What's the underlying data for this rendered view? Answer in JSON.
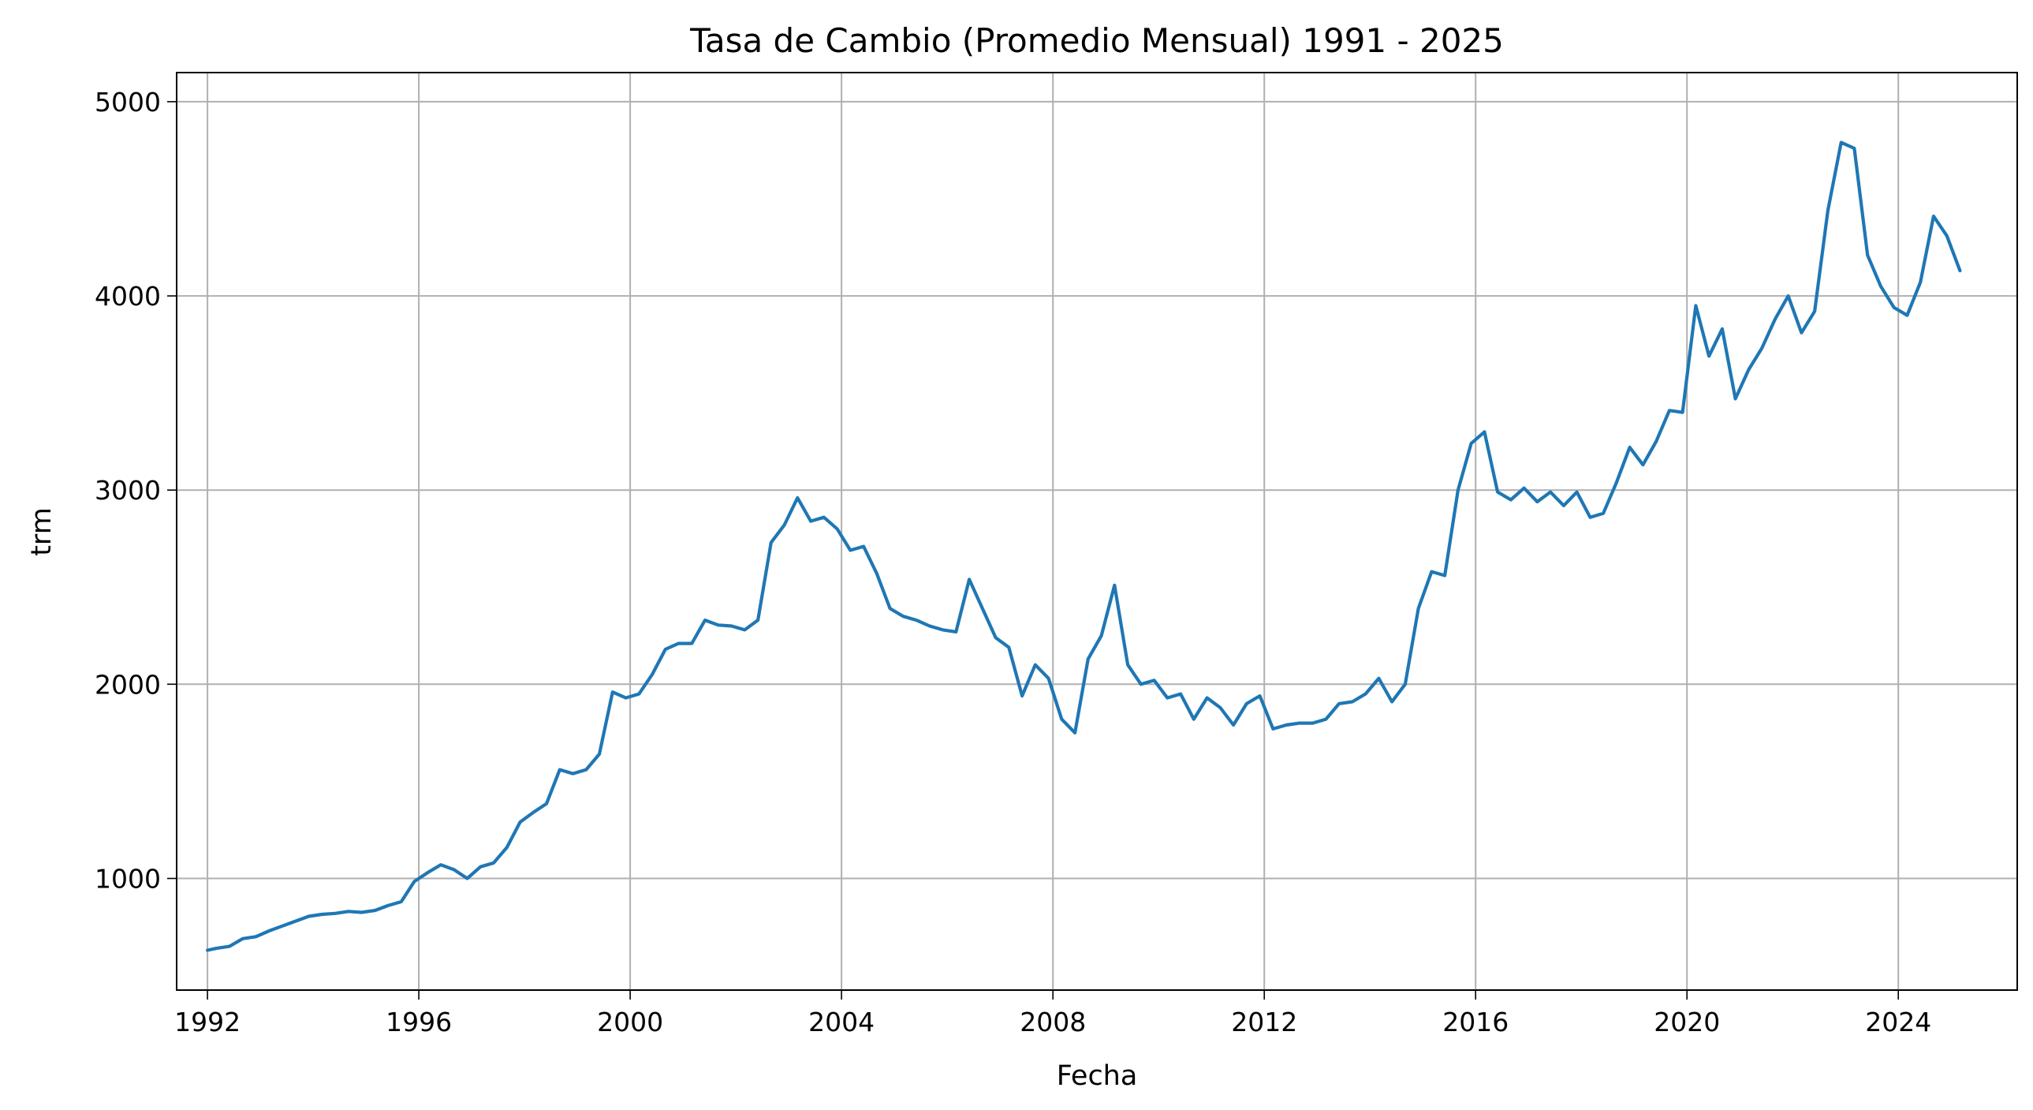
{
  "chart_data": {
    "type": "line",
    "title": "Tasa de Cambio (Promedio Mensual) 1991 - 2025",
    "xlabel": "Fecha",
    "ylabel": "trm",
    "x_type": "date",
    "xlim": [
      "1991-06-01",
      "2026-04-01"
    ],
    "ylim": [
      425,
      5150
    ],
    "xticks": [
      {
        "value": "1992-01-01",
        "label": "1992"
      },
      {
        "value": "1996-01-01",
        "label": "1996"
      },
      {
        "value": "2000-01-01",
        "label": "2000"
      },
      {
        "value": "2004-01-01",
        "label": "2004"
      },
      {
        "value": "2008-01-01",
        "label": "2008"
      },
      {
        "value": "2012-01-01",
        "label": "2012"
      },
      {
        "value": "2016-01-01",
        "label": "2016"
      },
      {
        "value": "2020-01-01",
        "label": "2020"
      },
      {
        "value": "2024-01-01",
        "label": "2024"
      }
    ],
    "yticks": [
      {
        "value": 1000,
        "label": "1000"
      },
      {
        "value": 2000,
        "label": "2000"
      },
      {
        "value": 3000,
        "label": "3000"
      },
      {
        "value": 4000,
        "label": "4000"
      },
      {
        "value": 5000,
        "label": "5000"
      }
    ],
    "grid": true,
    "series": [
      {
        "color": "#1f77b4",
        "points": [
          [
            "1992-01",
            630
          ],
          [
            "1992-03",
            640
          ],
          [
            "1992-06",
            650
          ],
          [
            "1992-09",
            690
          ],
          [
            "1992-12",
            700
          ],
          [
            "1993-03",
            730
          ],
          [
            "1993-06",
            755
          ],
          [
            "1993-09",
            780
          ],
          [
            "1993-12",
            805
          ],
          [
            "1994-03",
            815
          ],
          [
            "1994-06",
            820
          ],
          [
            "1994-09",
            830
          ],
          [
            "1994-12",
            825
          ],
          [
            "1995-03",
            835
          ],
          [
            "1995-06",
            860
          ],
          [
            "1995-09",
            880
          ],
          [
            "1995-12",
            985
          ],
          [
            "1996-03",
            1030
          ],
          [
            "1996-06",
            1070
          ],
          [
            "1996-09",
            1045
          ],
          [
            "1996-12",
            1000
          ],
          [
            "1997-03",
            1060
          ],
          [
            "1997-06",
            1080
          ],
          [
            "1997-09",
            1160
          ],
          [
            "1997-12",
            1290
          ],
          [
            "1998-03",
            1340
          ],
          [
            "1998-06",
            1385
          ],
          [
            "1998-09",
            1560
          ],
          [
            "1998-12",
            1540
          ],
          [
            "1999-03",
            1560
          ],
          [
            "1999-06",
            1640
          ],
          [
            "1999-09",
            1960
          ],
          [
            "1999-12",
            1930
          ],
          [
            "2000-03",
            1950
          ],
          [
            "2000-06",
            2050
          ],
          [
            "2000-09",
            2180
          ],
          [
            "2000-12",
            2210
          ],
          [
            "2001-03",
            2210
          ],
          [
            "2001-06",
            2330
          ],
          [
            "2001-09",
            2305
          ],
          [
            "2001-12",
            2300
          ],
          [
            "2002-03",
            2280
          ],
          [
            "2002-06",
            2330
          ],
          [
            "2002-09",
            2730
          ],
          [
            "2002-12",
            2820
          ],
          [
            "2003-03",
            2960
          ],
          [
            "2003-06",
            2840
          ],
          [
            "2003-09",
            2860
          ],
          [
            "2003-12",
            2800
          ],
          [
            "2004-03",
            2690
          ],
          [
            "2004-06",
            2710
          ],
          [
            "2004-09",
            2570
          ],
          [
            "2004-12",
            2390
          ],
          [
            "2005-03",
            2350
          ],
          [
            "2005-06",
            2330
          ],
          [
            "2005-09",
            2300
          ],
          [
            "2005-12",
            2280
          ],
          [
            "2006-03",
            2270
          ],
          [
            "2006-06",
            2540
          ],
          [
            "2006-09",
            2390
          ],
          [
            "2006-12",
            2240
          ],
          [
            "2007-03",
            2190
          ],
          [
            "2007-06",
            1940
          ],
          [
            "2007-09",
            2100
          ],
          [
            "2007-12",
            2030
          ],
          [
            "2008-03",
            1820
          ],
          [
            "2008-06",
            1750
          ],
          [
            "2008-09",
            2130
          ],
          [
            "2008-12",
            2250
          ],
          [
            "2009-03",
            2510
          ],
          [
            "2009-06",
            2100
          ],
          [
            "2009-09",
            2000
          ],
          [
            "2009-12",
            2020
          ],
          [
            "2010-03",
            1930
          ],
          [
            "2010-06",
            1950
          ],
          [
            "2010-09",
            1820
          ],
          [
            "2010-12",
            1930
          ],
          [
            "2011-03",
            1880
          ],
          [
            "2011-06",
            1790
          ],
          [
            "2011-09",
            1900
          ],
          [
            "2011-12",
            1940
          ],
          [
            "2012-03",
            1770
          ],
          [
            "2012-06",
            1790
          ],
          [
            "2012-09",
            1800
          ],
          [
            "2012-12",
            1800
          ],
          [
            "2013-03",
            1820
          ],
          [
            "2013-06",
            1900
          ],
          [
            "2013-09",
            1910
          ],
          [
            "2013-12",
            1950
          ],
          [
            "2014-03",
            2030
          ],
          [
            "2014-06",
            1910
          ],
          [
            "2014-09",
            2000
          ],
          [
            "2014-12",
            2390
          ],
          [
            "2015-03",
            2580
          ],
          [
            "2015-06",
            2560
          ],
          [
            "2015-09",
            3000
          ],
          [
            "2015-12",
            3240
          ],
          [
            "2016-03",
            3300
          ],
          [
            "2016-06",
            2990
          ],
          [
            "2016-09",
            2950
          ],
          [
            "2016-12",
            3010
          ],
          [
            "2017-03",
            2940
          ],
          [
            "2017-06",
            2990
          ],
          [
            "2017-09",
            2920
          ],
          [
            "2017-12",
            2990
          ],
          [
            "2018-03",
            2860
          ],
          [
            "2018-06",
            2880
          ],
          [
            "2018-09",
            3040
          ],
          [
            "2018-12",
            3220
          ],
          [
            "2019-03",
            3130
          ],
          [
            "2019-06",
            3250
          ],
          [
            "2019-09",
            3410
          ],
          [
            "2019-12",
            3400
          ],
          [
            "2020-03",
            3950
          ],
          [
            "2020-06",
            3690
          ],
          [
            "2020-09",
            3830
          ],
          [
            "2020-12",
            3470
          ],
          [
            "2021-03",
            3620
          ],
          [
            "2021-06",
            3730
          ],
          [
            "2021-09",
            3880
          ],
          [
            "2021-12",
            4000
          ],
          [
            "2022-03",
            3810
          ],
          [
            "2022-06",
            3920
          ],
          [
            "2022-09",
            4440
          ],
          [
            "2022-12",
            4790
          ],
          [
            "2023-03",
            4760
          ],
          [
            "2023-06",
            4210
          ],
          [
            "2023-09",
            4050
          ],
          [
            "2023-12",
            3940
          ],
          [
            "2024-03",
            3900
          ],
          [
            "2024-06",
            4070
          ],
          [
            "2024-09",
            4410
          ],
          [
            "2024-12",
            4310
          ],
          [
            "2025-03",
            4130
          ]
        ]
      }
    ]
  }
}
